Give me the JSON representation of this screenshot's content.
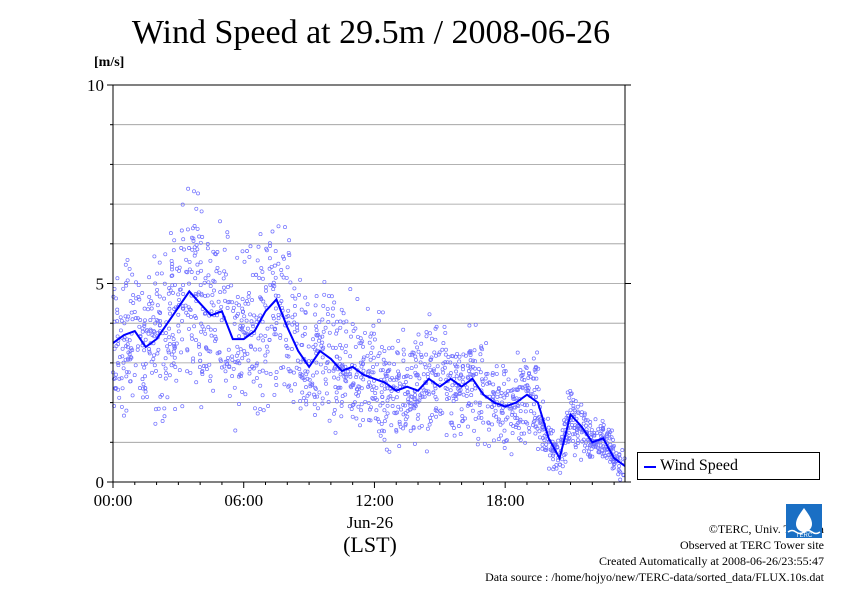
{
  "title": "Wind Speed at 29.5m / 2008-06-26",
  "unit_label": "[m/s]",
  "legend": {
    "series_label": "Wind Speed"
  },
  "x_axis": {
    "ticks": [
      "00:00",
      "06:00",
      "12:00",
      "18:00"
    ],
    "date_label": "Jun-26",
    "label": "(LST)"
  },
  "y_axis": {
    "ticks": [
      "0",
      "5",
      "10"
    ]
  },
  "credits": {
    "line1": "©TERC, Univ. Tsukuba",
    "line2": "Observed at TERC Tower site",
    "line3": "Created Automatically at 2008-06-26/23:55:47",
    "line4": "Data source : /home/hojyo/new/TERC-data/sorted_data/FLUX.10s.dat"
  },
  "logo_text": "TERC",
  "colors": {
    "series": "#0000ff",
    "points": "#7070ff",
    "grid": "#999999"
  },
  "chart_data": {
    "type": "line",
    "title": "Wind Speed at 29.5m / 2008-06-26",
    "xlabel": "(LST)",
    "ylabel": "[m/s]",
    "xlim": [
      0,
      23.5
    ],
    "ylim": [
      0,
      10
    ],
    "x_ticks": [
      0,
      6,
      12,
      18
    ],
    "y_ticks": [
      0,
      5,
      10
    ],
    "grid": "horizontal every 1 m/s",
    "legend_position": "right",
    "series": [
      {
        "name": "Wind Speed",
        "style": "line",
        "x": [
          0,
          0.5,
          1,
          1.5,
          2,
          2.5,
          3,
          3.5,
          4,
          4.5,
          5,
          5.5,
          6,
          6.5,
          7,
          7.5,
          8,
          8.5,
          9,
          9.5,
          10,
          10.5,
          11,
          11.5,
          12,
          12.5,
          13,
          13.5,
          14,
          14.5,
          15,
          15.5,
          16,
          16.5,
          17,
          17.5,
          18,
          18.5,
          19,
          19.5,
          20,
          20.5,
          21,
          21.5,
          22,
          22.5,
          23,
          23.5
        ],
        "values": [
          3.5,
          3.7,
          3.8,
          3.4,
          3.6,
          4.0,
          4.4,
          4.8,
          4.5,
          4.2,
          4.3,
          3.6,
          3.6,
          3.8,
          4.3,
          4.6,
          3.9,
          3.3,
          2.9,
          3.3,
          3.1,
          2.8,
          2.9,
          2.7,
          2.6,
          2.5,
          2.3,
          2.4,
          2.3,
          2.6,
          2.4,
          2.6,
          2.4,
          2.6,
          2.2,
          2.0,
          1.9,
          2.0,
          2.2,
          2.0,
          1.1,
          0.6,
          1.7,
          1.4,
          1.0,
          1.1,
          0.6,
          0.4
        ]
      }
    ]
  }
}
